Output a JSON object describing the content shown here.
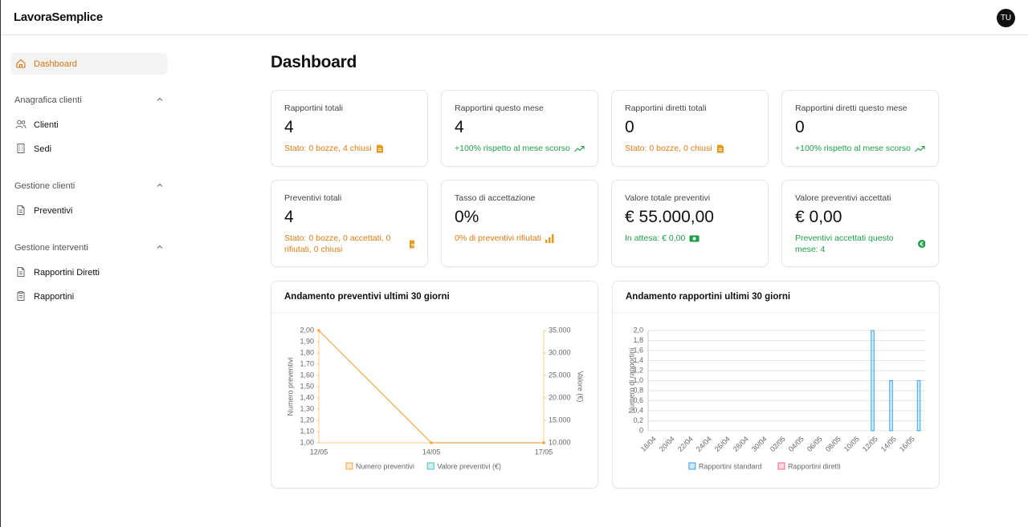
{
  "header": {
    "brand": "LavoraSemplice",
    "avatar": "TU"
  },
  "sidebar": {
    "active": "Dashboard",
    "sections": [
      {
        "title": "Anagrafica clienti",
        "items": [
          "Clienti",
          "Sedi"
        ]
      },
      {
        "title": "Gestione clienti",
        "items": [
          "Preventivi"
        ]
      },
      {
        "title": "Gestione interventi",
        "items": [
          "Rapportini Diretti",
          "Rapportini"
        ]
      }
    ]
  },
  "page_title": "Dashboard",
  "cards": [
    {
      "label": "Rapportini totali",
      "value": "4",
      "note": "Stato: 0 bozze, 4 chiusi"
    },
    {
      "label": "Rapportini questo mese",
      "value": "4",
      "note": "+100% rispetto al mese scorso"
    },
    {
      "label": "Rapportini diretti totali",
      "value": "0",
      "note": "Stato: 0 bozze, 0 chiusi"
    },
    {
      "label": "Rapportini diretti questo mese",
      "value": "0",
      "note": "+100% rispetto al mese scorso"
    },
    {
      "label": "Preventivi totali",
      "value": "4",
      "note": "Stato: 0 bozze, 0 accettati, 0 rifiutati, 0 chiusi"
    },
    {
      "label": "Tasso di accettazione",
      "value": "0%",
      "note": "0% di preventivi rifiutati"
    },
    {
      "label": "Valore totale preventivi",
      "value": "€ 55.000,00",
      "note": "In attesa: € 0,00"
    },
    {
      "label": "Valore preventivi accettati",
      "value": "€ 0,00",
      "note": "Preventivi accettati questo mese: 4"
    }
  ],
  "chart_data": [
    {
      "type": "line",
      "title": "Andamento preventivi ultimi 30 giorni",
      "categories": [
        "12/05",
        "14/05",
        "17/05"
      ],
      "series": [
        {
          "name": "Numero preventivi",
          "color": "#f5a742",
          "values": [
            2,
            1,
            1
          ]
        },
        {
          "name": "Valore preventivi (€)",
          "color": "#4bc0c0",
          "axis": "y2",
          "values": [
            null,
            null,
            null
          ]
        }
      ],
      "y_label": "Numero preventivi",
      "y2_label": "Valore (€)",
      "ylim": [
        1,
        2
      ],
      "yticks": [
        {
          "value": 1,
          "label": "1,00"
        },
        {
          "value": 1.1,
          "label": "1,10"
        },
        {
          "value": 1.2,
          "label": "1,20"
        },
        {
          "value": 1.3,
          "label": "1,30"
        },
        {
          "value": 1.4,
          "label": "1,40"
        },
        {
          "value": 1.5,
          "label": "1,50"
        },
        {
          "value": 1.6,
          "label": "1,60"
        },
        {
          "value": 1.7,
          "label": "1,70"
        },
        {
          "value": 1.8,
          "label": "1,80"
        },
        {
          "value": 1.9,
          "label": "1,90"
        },
        {
          "value": 2,
          "label": "2,00"
        }
      ],
      "y2lim": [
        10000,
        35000
      ],
      "y2ticks": [
        {
          "value": 10000,
          "label": "10.000"
        },
        {
          "value": 15000,
          "label": "15.000"
        },
        {
          "value": 20000,
          "label": "20.000"
        },
        {
          "value": 25000,
          "label": "25.000"
        },
        {
          "value": 30000,
          "label": "30.000"
        },
        {
          "value": 35000,
          "label": "35.000"
        }
      ],
      "grid": false
    },
    {
      "type": "bar",
      "title": "Andamento rapportini ultimi 30 giorni",
      "categories": [
        "18/04",
        null,
        "20/04",
        null,
        "22/04",
        null,
        "24/04",
        null,
        "26/04",
        null,
        "28/04",
        null,
        "30/04",
        null,
        "02/05",
        null,
        "04/05",
        null,
        "06/05",
        null,
        "08/05",
        null,
        "10/05",
        null,
        "12/05",
        null,
        "14/05",
        null,
        "16/05",
        null
      ],
      "series": [
        {
          "name": "Rapportini standard",
          "color": "#36a2eb",
          "values": [
            0,
            0,
            0,
            0,
            0,
            0,
            0,
            0,
            0,
            0,
            0,
            0,
            0,
            0,
            0,
            0,
            0,
            0,
            0,
            0,
            0,
            0,
            0,
            0,
            2,
            0,
            1,
            0,
            0,
            1
          ]
        },
        {
          "name": "Rapportini diretti",
          "color": "#ff6384",
          "values": [
            0,
            0,
            0,
            0,
            0,
            0,
            0,
            0,
            0,
            0,
            0,
            0,
            0,
            0,
            0,
            0,
            0,
            0,
            0,
            0,
            0,
            0,
            0,
            0,
            0,
            0,
            0,
            0,
            0,
            0
          ]
        }
      ],
      "y_label": "Numero di rapportini",
      "ylim": [
        0,
        2
      ],
      "yticks": [
        0,
        {
          "value": 0.2,
          "label": "0,2"
        },
        {
          "value": 0.4,
          "label": "0,4"
        },
        {
          "value": 0.6,
          "label": "0,6"
        },
        {
          "value": 0.8,
          "label": "0,8"
        },
        {
          "value": 1,
          "label": "1,0"
        },
        {
          "value": 1.2,
          "label": "1,2"
        },
        {
          "value": 1.4,
          "label": "1,4"
        },
        {
          "value": 1.6,
          "label": "1,6"
        },
        {
          "value": 1.8,
          "label": "1,8"
        },
        {
          "value": 2,
          "label": "2,0"
        }
      ],
      "grid": true
    }
  ]
}
